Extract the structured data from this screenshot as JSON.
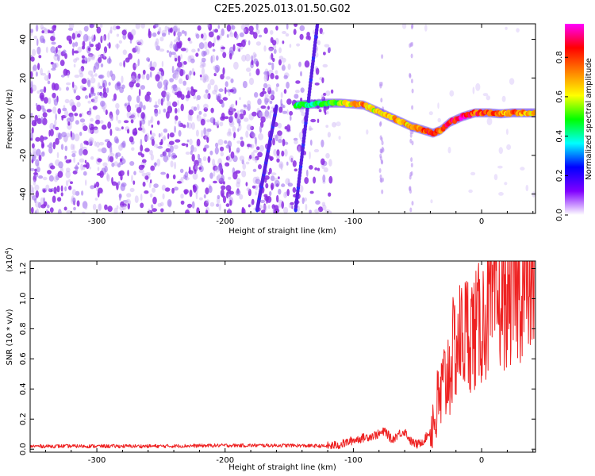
{
  "title": "C2E5.2025.013.01.50.G02",
  "chart_data": [
    {
      "type": "heatmap",
      "xlabel": "Height of straight line (km)",
      "ylabel": "Frequency (Hz)",
      "xlim": [
        -352,
        42
      ],
      "ylim": [
        -50,
        48
      ],
      "xticks": [
        -300,
        -200,
        -100,
        0
      ],
      "xtick_labels": [
        "-300",
        "-200",
        "-100",
        "0"
      ],
      "yticks": [
        -40,
        -20,
        0,
        20,
        40
      ],
      "ytick_labels": [
        "-40",
        "-20",
        "0",
        "20",
        "40"
      ],
      "grid": false,
      "colorbar": {
        "label": "Normalized spectral amplitude",
        "range": [
          0,
          0.97
        ],
        "ticks": [
          0,
          0.2,
          0.4,
          0.6,
          0.8
        ],
        "tick_labels": [
          "0.0",
          "0.2",
          "0.4",
          "0.6",
          "0.8"
        ],
        "colormap": [
          "#ffffff",
          "#8000ff",
          "#0000ff",
          "#00ffff",
          "#00ff00",
          "#ffff00",
          "#ff8000",
          "#ff0000",
          "#ff00ff"
        ]
      },
      "features": {
        "main_trace": {
          "x": [
            -145,
            -130,
            -120,
            -110,
            -100,
            -92,
            -85,
            -75,
            -65,
            -55,
            -45,
            -38,
            -32,
            -25,
            -15,
            -5,
            5,
            15,
            25,
            42
          ],
          "y": [
            6,
            6.5,
            7,
            7,
            6.5,
            6,
            4,
            1,
            -2,
            -5,
            -7,
            -8.5,
            -7,
            -3,
            0,
            2,
            2,
            1.5,
            2,
            2
          ],
          "amplitude": [
            0.5,
            0.45,
            0.5,
            0.6,
            0.7,
            0.8,
            0.65,
            0.7,
            0.75,
            0.7,
            0.85,
            0.9,
            0.8,
            0.9,
            0.95,
            0.85,
            0.9,
            0.75,
            0.8,
            0.7
          ]
        },
        "diagonal_streaks": [
          {
            "x": [
              -175,
              -160
            ],
            "y": [
              -48,
              5
            ]
          },
          {
            "x": [
              -145,
              -128
            ],
            "y": [
              -48,
              48
            ]
          }
        ],
        "vertical_streaks_x": [
          -78,
          -55
        ]
      }
    },
    {
      "type": "line",
      "xlabel": "Height of straight line (km)",
      "ylabel": "SNR (10 * v/v)",
      "yscale_label": "(x10",
      "yscale_exp": "4",
      "yscale_close": ")",
      "xlim": [
        -352,
        42
      ],
      "ylim": [
        -0.02,
        1.25
      ],
      "xticks": [
        -300,
        -200,
        -100,
        0
      ],
      "xtick_labels": [
        "-300",
        "-200",
        "-100",
        "0"
      ],
      "yticks": [
        0,
        0.2,
        0.4,
        0.6,
        0.8,
        1.0,
        1.2
      ],
      "ytick_labels": [
        "0.0",
        "0.2",
        "0.4",
        "0.6",
        "0.8",
        "1.0",
        "1.2"
      ],
      "grid": false,
      "series": [
        {
          "color": "#ee2222",
          "x": [
            -352,
            -300,
            -250,
            -200,
            -150,
            -120,
            -110,
            -100,
            -90,
            -80,
            -75,
            -70,
            -65,
            -60,
            -55,
            -50,
            -45,
            -40,
            -35,
            -30,
            -25,
            -20,
            -15,
            -10,
            -5,
            0,
            10,
            20,
            30,
            42
          ],
          "y": [
            0.02,
            0.02,
            0.02,
            0.025,
            0.025,
            0.02,
            0.03,
            0.06,
            0.08,
            0.1,
            0.12,
            0.06,
            0.1,
            0.12,
            0.05,
            0.03,
            0.06,
            0.12,
            0.25,
            0.4,
            0.55,
            0.7,
            0.75,
            0.8,
            0.78,
            0.85,
            0.95,
            1.0,
            1.05,
            1.12
          ]
        }
      ]
    }
  ]
}
